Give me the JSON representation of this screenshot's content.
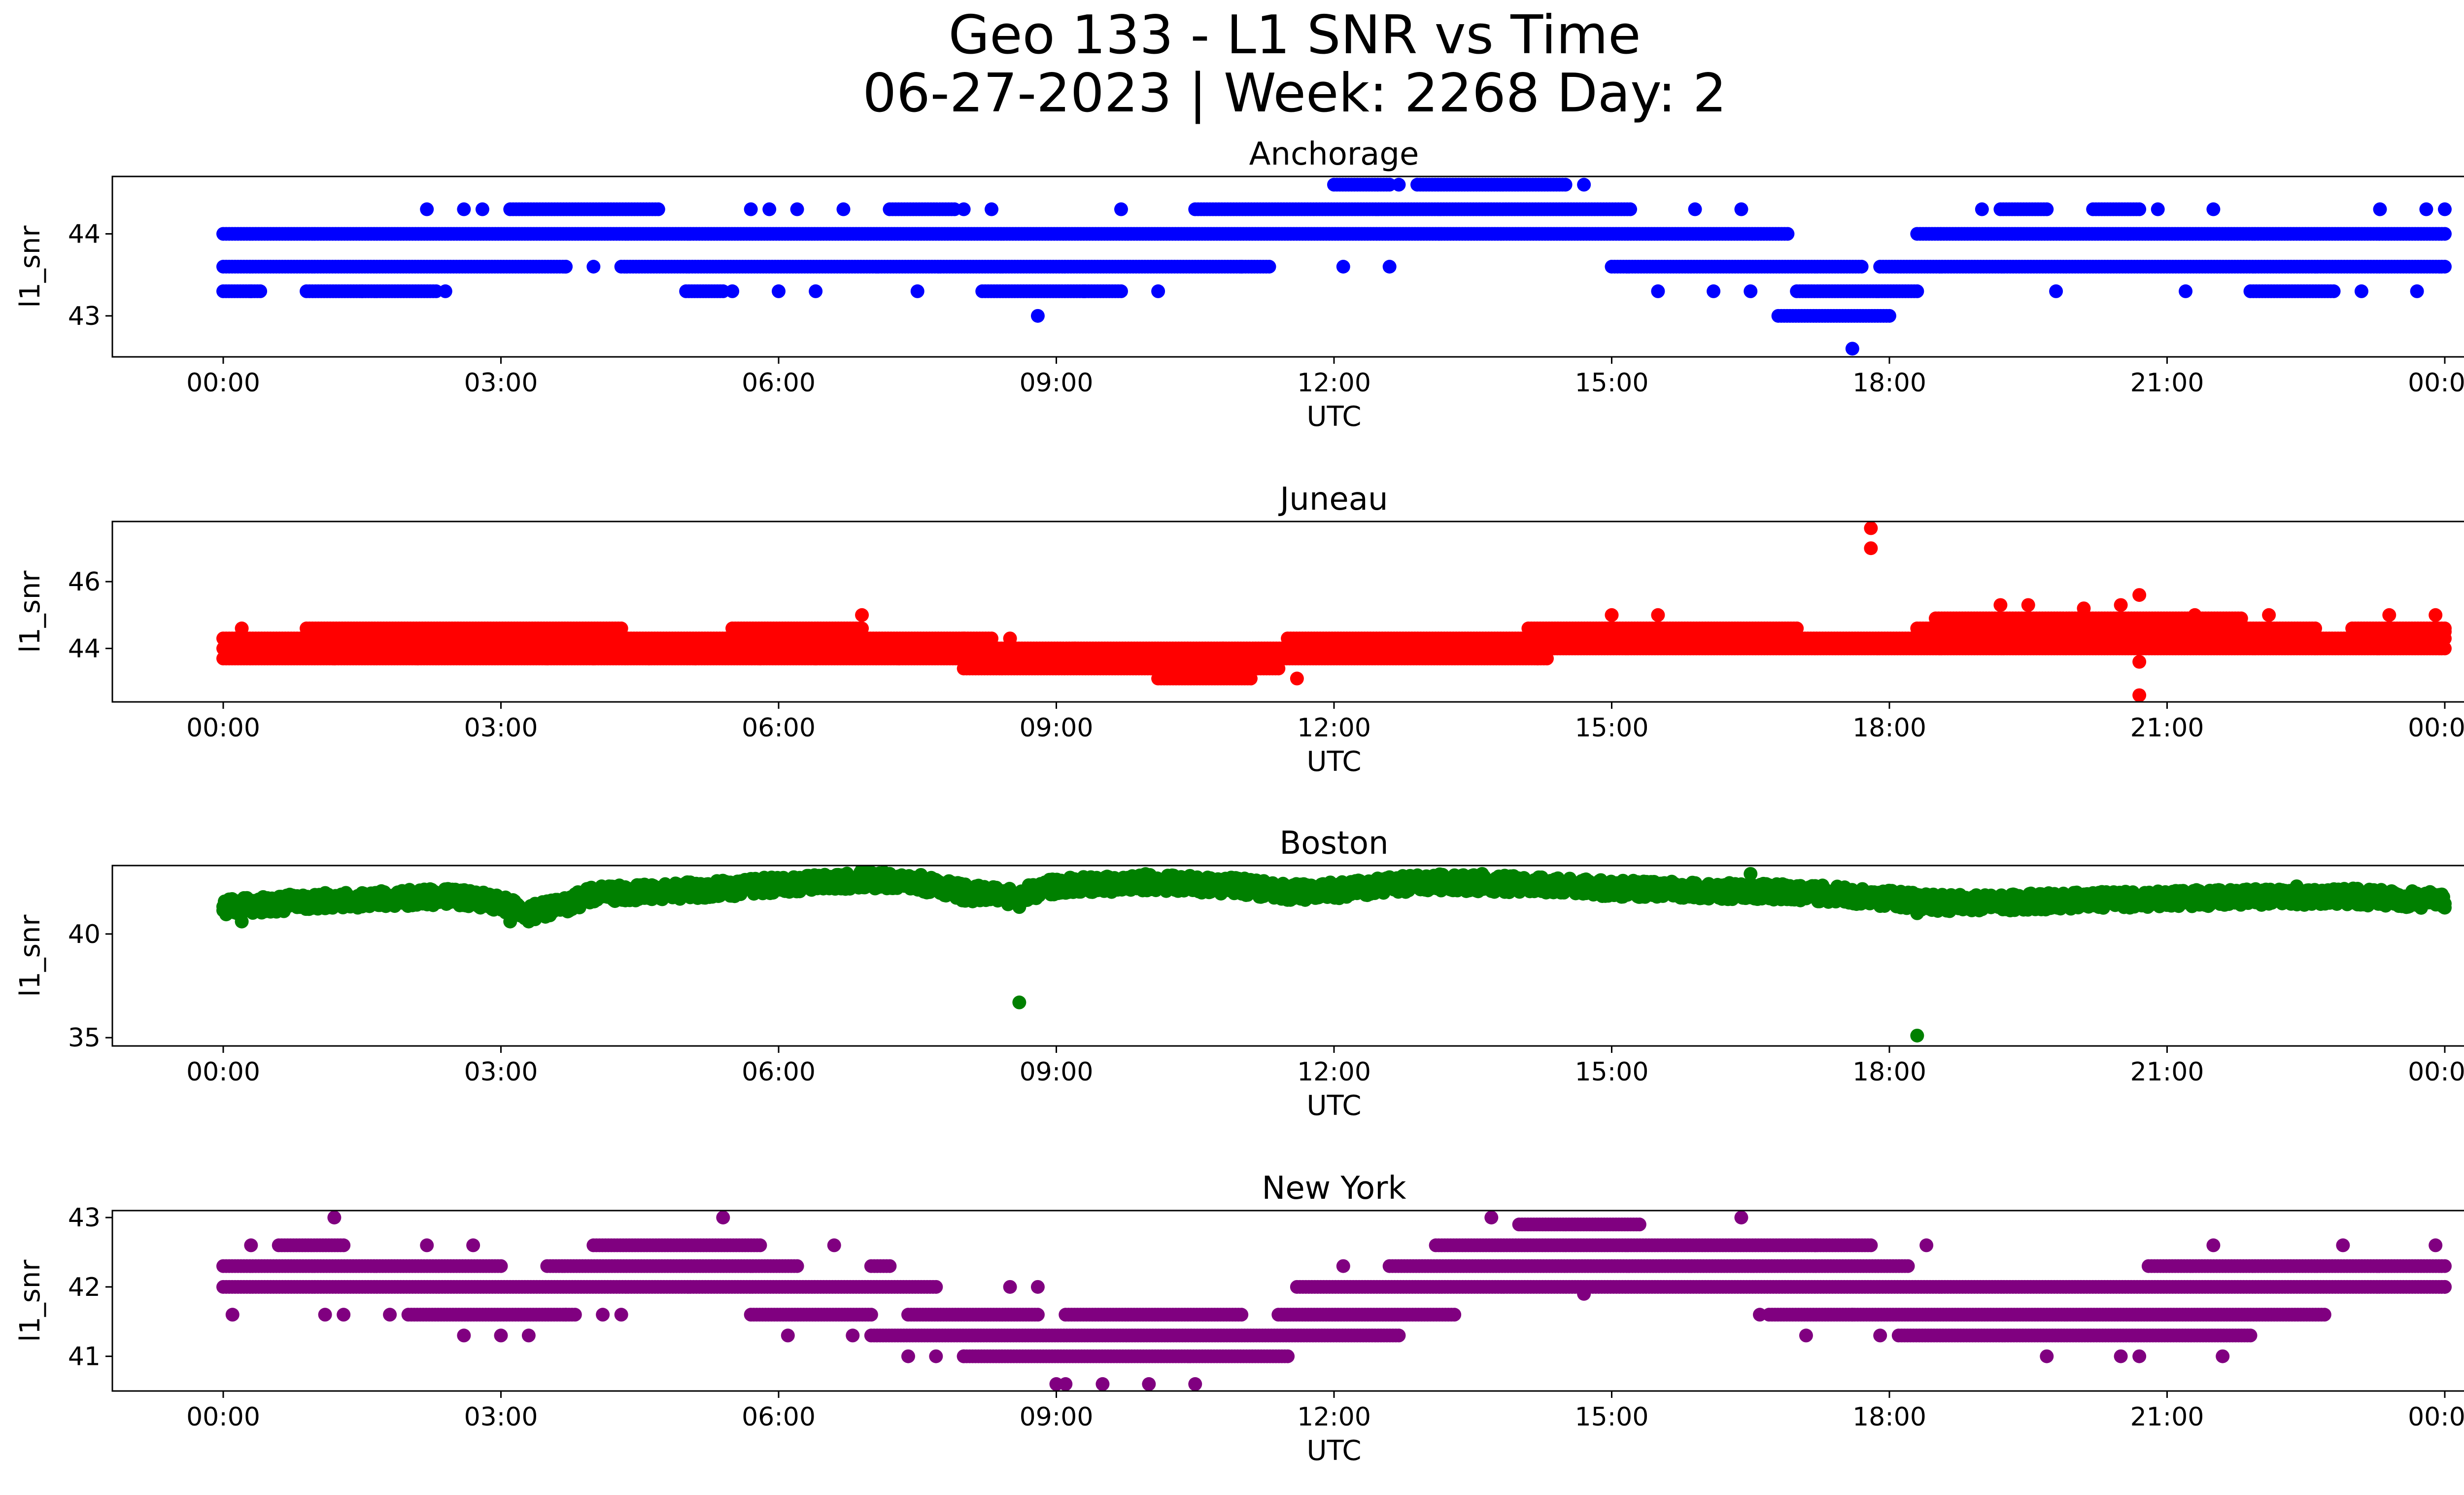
{
  "figure": {
    "title_line1": "Geo 133 - L1 SNR vs Time",
    "title_line2": "06-27-2023 | Week: 2268 Day: 2"
  },
  "chart_data": [
    {
      "type": "scatter",
      "title": "Anchorage",
      "xlabel": "UTC",
      "ylabel": "l1_snr",
      "color": "#0000ff",
      "xlim": [
        "00:00",
        "24:00"
      ],
      "xticks": [
        "00:00",
        "03:00",
        "06:00",
        "09:00",
        "12:00",
        "15:00",
        "18:00",
        "21:00",
        "00:00"
      ],
      "ylim": [
        42.5,
        44.7
      ],
      "yticks": [
        43,
        44
      ],
      "series": [
        {
          "y": 44.0,
          "segments": [
            [
              0.0,
              16.9
            ],
            [
              18.3,
              24.0
            ]
          ]
        },
        {
          "y": 43.6,
          "segments": [
            [
              0.0,
              3.7
            ],
            [
              4.3,
              11.3
            ],
            [
              15.0,
              17.7
            ],
            [
              17.9,
              24.0
            ]
          ]
        },
        {
          "y": 43.3,
          "segments": [
            [
              0.0,
              0.4
            ],
            [
              0.9,
              2.3
            ],
            [
              5.0,
              5.4
            ],
            [
              8.2,
              9.7
            ],
            [
              17.0,
              18.3
            ],
            [
              21.9,
              22.8
            ]
          ]
        },
        {
          "y": 44.3,
          "segments": [
            [
              3.1,
              4.7
            ],
            [
              7.2,
              7.9
            ],
            [
              10.5,
              15.2
            ],
            [
              19.2,
              19.7
            ],
            [
              20.2,
              20.7
            ]
          ]
        },
        {
          "y": 43.0,
          "segments": [
            [
              16.8,
              18.0
            ]
          ]
        },
        {
          "y": 44.6,
          "segments": [
            [
              12.0,
              12.6
            ],
            [
              12.9,
              14.5
            ]
          ]
        }
      ],
      "points": [
        [
          0.3,
          43.3
        ],
        [
          1.5,
          43.3
        ],
        [
          2.2,
          44.3
        ],
        [
          2.4,
          43.3
        ],
        [
          2.6,
          44.3
        ],
        [
          2.8,
          44.3
        ],
        [
          3.7,
          43.6
        ],
        [
          4.0,
          43.6
        ],
        [
          5.5,
          43.3
        ],
        [
          5.7,
          44.3
        ],
        [
          5.9,
          44.3
        ],
        [
          6.0,
          43.3
        ],
        [
          6.2,
          44.3
        ],
        [
          6.4,
          43.3
        ],
        [
          6.7,
          44.3
        ],
        [
          7.5,
          43.3
        ],
        [
          8.0,
          44.3
        ],
        [
          8.3,
          44.3
        ],
        [
          8.8,
          43.0
        ],
        [
          9.3,
          43.3
        ],
        [
          9.7,
          44.3
        ],
        [
          10.1,
          43.3
        ],
        [
          11.0,
          43.6
        ],
        [
          12.1,
          43.6
        ],
        [
          12.6,
          43.6
        ],
        [
          12.7,
          44.6
        ],
        [
          14.7,
          44.6
        ],
        [
          15.5,
          43.3
        ],
        [
          15.9,
          44.3
        ],
        [
          16.1,
          43.3
        ],
        [
          16.4,
          44.3
        ],
        [
          16.5,
          43.3
        ],
        [
          17.6,
          42.6
        ],
        [
          19.0,
          44.3
        ],
        [
          19.8,
          43.3
        ],
        [
          20.9,
          44.3
        ],
        [
          21.2,
          43.3
        ],
        [
          21.5,
          44.3
        ],
        [
          23.1,
          43.3
        ],
        [
          23.3,
          44.3
        ],
        [
          23.7,
          43.3
        ],
        [
          23.8,
          44.3
        ],
        [
          24.0,
          44.3
        ]
      ]
    },
    {
      "type": "scatter",
      "title": "Juneau",
      "xlabel": "UTC",
      "ylabel": "l1_snr",
      "color": "#ff0000",
      "xlim": [
        "00:00",
        "24:00"
      ],
      "xticks": [
        "00:00",
        "03:00",
        "06:00",
        "09:00",
        "12:00",
        "15:00",
        "18:00",
        "21:00",
        "00:00"
      ],
      "ylim": [
        42.4,
        47.8
      ],
      "yticks": [
        44,
        46
      ],
      "series": [
        {
          "y": 44.3,
          "segments": [
            [
              0.0,
              8.3
            ],
            [
              11.5,
              18.3
            ],
            [
              18.3,
              24.0
            ]
          ]
        },
        {
          "y": 44.0,
          "segments": [
            [
              0.0,
              24.0
            ]
          ]
        },
        {
          "y": 43.7,
          "segments": [
            [
              0.0,
              14.2
            ],
            [
              14.2,
              14.3
            ]
          ]
        },
        {
          "y": 44.6,
          "segments": [
            [
              0.9,
              4.3
            ],
            [
              5.5,
              6.9
            ],
            [
              14.1,
              17.0
            ],
            [
              18.3,
              22.6
            ],
            [
              23.0,
              24.0
            ]
          ]
        },
        {
          "y": 43.4,
          "segments": [
            [
              8.0,
              11.4
            ]
          ]
        },
        {
          "y": 44.9,
          "segments": [
            [
              18.5,
              21.8
            ]
          ]
        },
        {
          "y": 43.1,
          "segments": [
            [
              10.1,
              11.1
            ]
          ]
        }
      ],
      "points": [
        [
          0.2,
          44.6
        ],
        [
          1.2,
          43.7
        ],
        [
          2.1,
          43.7
        ],
        [
          3.5,
          43.7
        ],
        [
          4.0,
          43.7
        ],
        [
          4.6,
          43.7
        ],
        [
          5.1,
          43.7
        ],
        [
          5.8,
          43.7
        ],
        [
          6.4,
          43.7
        ],
        [
          6.9,
          45.0
        ],
        [
          7.3,
          43.7
        ],
        [
          8.0,
          44.3
        ],
        [
          8.5,
          44.3
        ],
        [
          9.2,
          44.0
        ],
        [
          10.7,
          43.7
        ],
        [
          10.8,
          44.0
        ],
        [
          11.6,
          43.1
        ],
        [
          15.0,
          45.0
        ],
        [
          15.5,
          45.0
        ],
        [
          17.8,
          47.6
        ],
        [
          17.8,
          47.0
        ],
        [
          19.2,
          45.3
        ],
        [
          19.5,
          45.3
        ],
        [
          20.1,
          45.2
        ],
        [
          20.5,
          45.3
        ],
        [
          20.7,
          45.6
        ],
        [
          20.7,
          43.6
        ],
        [
          20.7,
          42.6
        ],
        [
          21.3,
          45.0
        ],
        [
          22.1,
          45.0
        ],
        [
          23.4,
          45.0
        ],
        [
          23.9,
          45.0
        ],
        [
          24.0,
          44.5
        ]
      ]
    },
    {
      "type": "scatter",
      "title": "Boston",
      "xlabel": "UTC",
      "ylabel": "l1_snr",
      "color": "#008000",
      "xlim": [
        "00:00",
        "24:00"
      ],
      "xticks": [
        "00:00",
        "03:00",
        "06:00",
        "09:00",
        "12:00",
        "15:00",
        "18:00",
        "21:00",
        "00:00"
      ],
      "ylim": [
        34.6,
        43.3
      ],
      "yticks": [
        35,
        40
      ],
      "bands": [
        {
          "x": [
            0.0,
            0.4,
            1.0,
            2.5,
            3.0,
            3.3,
            3.6,
            4.0,
            5.5,
            6.0,
            7.0,
            7.5,
            8.0,
            8.5,
            9.0,
            10.0,
            11.0,
            11.5,
            12.0,
            12.5,
            13.0,
            14.0,
            15.0,
            16.0,
            17.0,
            17.5,
            18.0,
            18.5,
            19.0,
            20.0,
            21.0,
            22.0,
            23.0,
            24.0
          ],
          "y": [
            41.3,
            41.4,
            41.6,
            41.8,
            41.5,
            41.0,
            41.3,
            41.9,
            42.2,
            42.4,
            42.6,
            42.5,
            42.0,
            41.8,
            42.3,
            42.5,
            42.3,
            42.0,
            42.1,
            42.3,
            42.5,
            42.4,
            42.2,
            42.1,
            42.0,
            41.9,
            41.7,
            41.5,
            41.5,
            41.6,
            41.7,
            41.8,
            41.8,
            41.6
          ],
          "spread": 0.8
        }
      ],
      "points": [
        [
          0.2,
          40.6
        ],
        [
          3.1,
          40.6
        ],
        [
          3.3,
          40.6
        ],
        [
          6.9,
          43.1
        ],
        [
          8.6,
          41.3
        ],
        [
          8.6,
          36.7
        ],
        [
          13.6,
          42.9
        ],
        [
          16.5,
          42.9
        ],
        [
          18.3,
          41.0
        ],
        [
          18.3,
          35.1
        ],
        [
          22.4,
          42.3
        ]
      ]
    },
    {
      "type": "scatter",
      "title": "New York",
      "xlabel": "UTC",
      "ylabel": "l1_snr",
      "color": "#800080",
      "xlim": [
        "00:00",
        "24:00"
      ],
      "xticks": [
        "00:00",
        "03:00",
        "06:00",
        "09:00",
        "12:00",
        "15:00",
        "18:00",
        "21:00",
        "00:00"
      ],
      "ylim": [
        40.5,
        43.1
      ],
      "yticks": [
        41,
        42,
        43
      ],
      "series": [
        {
          "y": 42.3,
          "segments": [
            [
              0.0,
              3.0
            ],
            [
              3.5,
              6.2
            ],
            [
              7.0,
              7.2
            ],
            [
              12.6,
              18.2
            ],
            [
              20.8,
              24.0
            ]
          ]
        },
        {
          "y": 42.0,
          "segments": [
            [
              0.0,
              7.7
            ],
            [
              11.6,
              24.0
            ]
          ]
        },
        {
          "y": 41.6,
          "segments": [
            [
              2.0,
              3.8
            ],
            [
              5.7,
              7.0
            ],
            [
              7.4,
              8.8
            ],
            [
              9.1,
              11.0
            ],
            [
              11.4,
              13.3
            ],
            [
              16.7,
              22.7
            ]
          ]
        },
        {
          "y": 41.3,
          "segments": [
            [
              7.0,
              12.7
            ],
            [
              18.1,
              21.9
            ]
          ]
        },
        {
          "y": 42.6,
          "segments": [
            [
              0.6,
              1.3
            ],
            [
              4.0,
              5.8
            ],
            [
              13.1,
              17.8
            ]
          ]
        },
        {
          "y": 41.0,
          "segments": [
            [
              8.0,
              11.5
            ]
          ]
        },
        {
          "y": 42.9,
          "segments": [
            [
              14.0,
              15.3
            ]
          ]
        }
      ],
      "points": [
        [
          0.1,
          41.6
        ],
        [
          0.3,
          42.6
        ],
        [
          1.1,
          41.6
        ],
        [
          1.2,
          43.0
        ],
        [
          1.3,
          41.6
        ],
        [
          1.8,
          41.6
        ],
        [
          2.2,
          42.6
        ],
        [
          2.6,
          41.3
        ],
        [
          2.7,
          42.6
        ],
        [
          3.0,
          41.3
        ],
        [
          3.3,
          41.3
        ],
        [
          3.7,
          41.6
        ],
        [
          4.1,
          41.6
        ],
        [
          4.3,
          41.6
        ],
        [
          5.4,
          43.0
        ],
        [
          6.1,
          41.3
        ],
        [
          6.6,
          42.6
        ],
        [
          6.8,
          41.3
        ],
        [
          7.4,
          41.0
        ],
        [
          7.7,
          41.0
        ],
        [
          8.0,
          41.0
        ],
        [
          8.5,
          42.0
        ],
        [
          8.8,
          42.0
        ],
        [
          9.0,
          40.6
        ],
        [
          9.1,
          40.6
        ],
        [
          9.5,
          40.6
        ],
        [
          10.0,
          40.6
        ],
        [
          10.5,
          40.6
        ],
        [
          12.1,
          42.3
        ],
        [
          13.7,
          43.0
        ],
        [
          14.7,
          41.9
        ],
        [
          16.4,
          43.0
        ],
        [
          16.6,
          41.6
        ],
        [
          17.1,
          41.3
        ],
        [
          17.2,
          42.6
        ],
        [
          17.6,
          41.6
        ],
        [
          17.9,
          41.3
        ],
        [
          18.4,
          42.6
        ],
        [
          19.7,
          41.0
        ],
        [
          20.5,
          41.0
        ],
        [
          20.7,
          41.0
        ],
        [
          21.5,
          42.6
        ],
        [
          21.6,
          41.0
        ],
        [
          22.9,
          42.6
        ],
        [
          23.9,
          42.6
        ],
        [
          24.0,
          42.0
        ]
      ]
    }
  ]
}
